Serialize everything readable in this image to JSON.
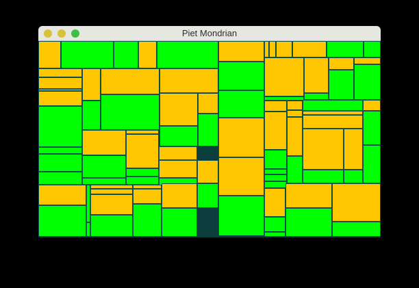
{
  "window": {
    "title": "Piet Mondrian",
    "controls": {
      "close_color": "#d8c13a",
      "minimize_color": "#d8c13a",
      "zoom_color": "#3fbf3f"
    }
  },
  "palette": {
    "green": "#00ff00",
    "yellow": "#ffc700",
    "line": "#0d4f4f"
  }
}
